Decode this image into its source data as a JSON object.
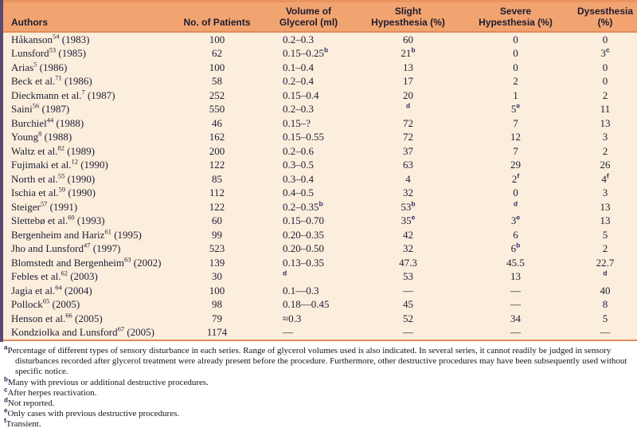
{
  "colors": {
    "header_bg": "#f2a470",
    "body_bg": "#fbeedc",
    "rule_orange": "#e28c5a",
    "accent_bar_purple": "#584a72",
    "body_text": "#1e1e38",
    "superscript_blue": "#2d2d70"
  },
  "table": {
    "headers": [
      {
        "lines": [
          "Authors"
        ]
      },
      {
        "lines": [
          "No. of Patients"
        ]
      },
      {
        "lines": [
          "Volume of",
          "Glycerol (ml)"
        ]
      },
      {
        "lines": [
          "Slight",
          "Hypesthesia (%)"
        ]
      },
      {
        "lines": [
          "Severe",
          "Hypesthesia (%)"
        ]
      },
      {
        "lines": [
          "Dysesthesia",
          "(%)"
        ]
      }
    ],
    "rows": [
      {
        "author": "Håkanson",
        "ref": "54",
        "year": "(1983)",
        "patients": "100",
        "volume": {
          "t": "0.2–0.3"
        },
        "slight": {
          "t": "60"
        },
        "severe": {
          "t": "0"
        },
        "dys": {
          "t": "0"
        }
      },
      {
        "author": "Lunsford",
        "ref": "53",
        "year": "(1985)",
        "patients": "62",
        "volume": {
          "t": "0.15–0.25",
          "s": "b"
        },
        "slight": {
          "t": "21",
          "s": "b"
        },
        "severe": {
          "t": "0"
        },
        "dys": {
          "t": "3",
          "s": "c"
        }
      },
      {
        "author": "Arias",
        "ref": "5",
        "year": "(1986)",
        "patients": "100",
        "volume": {
          "t": "0.1–0.4"
        },
        "slight": {
          "t": "13"
        },
        "severe": {
          "t": "0"
        },
        "dys": {
          "t": "0"
        }
      },
      {
        "author": "Beck et al.",
        "ref": "71",
        "year": "(1986)",
        "patients": "58",
        "volume": {
          "t": "0.2–0.4"
        },
        "slight": {
          "t": "17"
        },
        "severe": {
          "t": "2"
        },
        "dys": {
          "t": "0"
        }
      },
      {
        "author": "Dieckmann et al.",
        "ref": "7",
        "year": "(1987)",
        "patients": "252",
        "volume": {
          "t": "0.15–0.4"
        },
        "slight": {
          "t": "20"
        },
        "severe": {
          "t": "1"
        },
        "dys": {
          "t": "2"
        }
      },
      {
        "author": "Saini",
        "ref": "56",
        "year": "(1987)",
        "patients": "550",
        "volume": {
          "t": "0.2–0.3"
        },
        "slight": {
          "s": "d"
        },
        "severe": {
          "t": "5",
          "s": "e"
        },
        "dys": {
          "t": "11"
        }
      },
      {
        "author": "Burchiel",
        "ref": "44",
        "year": "(1988)",
        "patients": "46",
        "volume": {
          "t": "0.15–?"
        },
        "slight": {
          "t": "72"
        },
        "severe": {
          "t": "7"
        },
        "dys": {
          "t": "13"
        }
      },
      {
        "author": "Young",
        "ref": "8",
        "year": "(1988)",
        "patients": "162",
        "volume": {
          "t": "0.15–0.55"
        },
        "slight": {
          "t": "72"
        },
        "severe": {
          "t": "12"
        },
        "dys": {
          "t": "3"
        }
      },
      {
        "author": "Waltz et al.",
        "ref": "82",
        "year": "(1989)",
        "patients": "200",
        "volume": {
          "t": "0.2–0.6"
        },
        "slight": {
          "t": "37"
        },
        "severe": {
          "t": "7"
        },
        "dys": {
          "t": "2"
        }
      },
      {
        "author": "Fujimaki et al.",
        "ref": "12",
        "year": "(1990)",
        "patients": "122",
        "volume": {
          "t": "0.3–0.5"
        },
        "slight": {
          "t": "63"
        },
        "severe": {
          "t": "29"
        },
        "dys": {
          "t": "26"
        }
      },
      {
        "author": "North et al.",
        "ref": "55",
        "year": "(1990)",
        "patients": "85",
        "volume": {
          "t": "0.3–0.4"
        },
        "slight": {
          "t": "4"
        },
        "severe": {
          "t": "2",
          "s": "f"
        },
        "dys": {
          "t": "4",
          "s": "f"
        }
      },
      {
        "author": "Ischia et al.",
        "ref": "59",
        "year": "(1990)",
        "patients": "112",
        "volume": {
          "t": "0.4–0.5"
        },
        "slight": {
          "t": "32"
        },
        "severe": {
          "t": "0"
        },
        "dys": {
          "t": "3"
        }
      },
      {
        "author": "Steiger",
        "ref": "57",
        "year": "(1991)",
        "patients": "122",
        "volume": {
          "t": "0.2–0.35",
          "s": "b"
        },
        "slight": {
          "t": "53",
          "s": "b"
        },
        "severe": {
          "s": "d"
        },
        "dys": {
          "t": "13"
        }
      },
      {
        "author": "Slettebø et al.",
        "ref": "60",
        "year": "(1993)",
        "patients": "60",
        "volume": {
          "t": "0.15–0.70"
        },
        "slight": {
          "t": "35",
          "s": "e"
        },
        "severe": {
          "t": "3",
          "s": "e"
        },
        "dys": {
          "t": "13"
        }
      },
      {
        "author": "Bergenheim and Hariz",
        "ref": "61",
        "year": "(1995)",
        "patients": "99",
        "volume": {
          "t": "0.20–0.35"
        },
        "slight": {
          "t": "42"
        },
        "severe": {
          "t": "6"
        },
        "dys": {
          "t": "5"
        }
      },
      {
        "author": "Jho and Lunsford",
        "ref": "47",
        "year": "(1997)",
        "patients": "523",
        "volume": {
          "t": "0.20–0.50"
        },
        "slight": {
          "t": "32"
        },
        "severe": {
          "t": "6",
          "s": "b"
        },
        "dys": {
          "t": "2"
        }
      },
      {
        "author": "Blomstedt and Bergenheim",
        "ref": "63",
        "year": "(2002)",
        "patients": "139",
        "volume": {
          "t": "0.13–0.35"
        },
        "slight": {
          "t": "47.3"
        },
        "severe": {
          "t": "45.5"
        },
        "dys": {
          "t": "22.7"
        }
      },
      {
        "author": "Febles et al.",
        "ref": "62",
        "year": "(2003)",
        "patients": "30",
        "volume": {
          "s": "d"
        },
        "slight": {
          "t": "53"
        },
        "severe": {
          "t": "13"
        },
        "dys": {
          "s": "d"
        }
      },
      {
        "author": "Jagia et al.",
        "ref": "64",
        "year": "(2004)",
        "patients": "100",
        "volume": {
          "t": "0.1—0.3"
        },
        "slight": {
          "t": "—"
        },
        "severe": {
          "t": "—"
        },
        "dys": {
          "t": "40"
        }
      },
      {
        "author": "Pollock",
        "ref": "65",
        "year": "(2005)",
        "patients": "98",
        "volume": {
          "t": "0.18—0.45"
        },
        "slight": {
          "t": "45"
        },
        "severe": {
          "t": "—"
        },
        "dys": {
          "t": "8"
        }
      },
      {
        "author": "Henson et al.",
        "ref": "66",
        "year": "(2005)",
        "patients": "79",
        "volume": {
          "t": "≈0.3"
        },
        "slight": {
          "t": "52"
        },
        "severe": {
          "t": "34"
        },
        "dys": {
          "t": "5"
        }
      },
      {
        "author": "Kondziolka and Lunsford",
        "ref": "67",
        "year": "(2005)",
        "patients": "1174",
        "volume": {
          "t": "—"
        },
        "slight": {
          "t": "—"
        },
        "severe": {
          "t": "—"
        },
        "dys": {
          "t": "—"
        }
      }
    ],
    "footnotes": [
      {
        "sup": "a",
        "text": "Percentage of different types of sensory disturbance in each series. Range of glycerol volumes used is also indicated. In several series, it cannot readily be judged in sensory disturbances recorded after glycerol treatment were already present before the procedure. Furthermore, other destructive procedures may have been subsequently used without specific notice."
      },
      {
        "sup": "b",
        "text": "Many with previous or additional destructive procedures."
      },
      {
        "sup": "c",
        "text": "After herpes reactivation."
      },
      {
        "sup": "d",
        "text": "Not reported."
      },
      {
        "sup": "e",
        "text": "Only cases with previous destructive procedures."
      },
      {
        "sup": "f",
        "text": "Transient."
      }
    ]
  }
}
